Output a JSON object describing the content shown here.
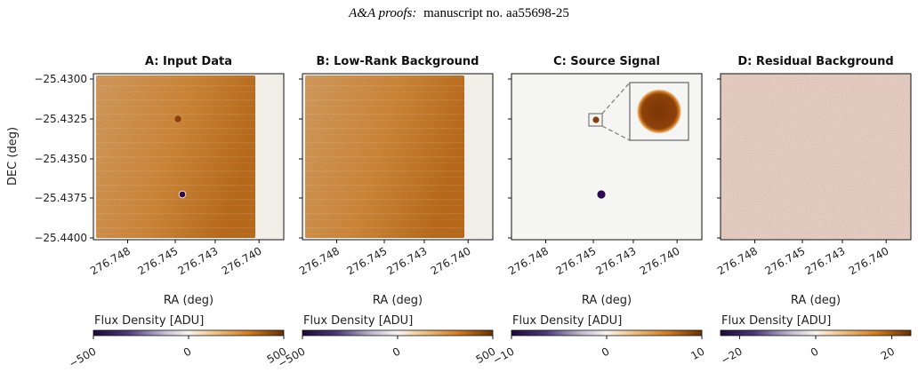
{
  "header": {
    "italic": "A&A proofs:",
    "rest": "manuscript no. aa55698-25"
  },
  "chart_data": [
    {
      "type": "heatmap",
      "title": "A: Input Data",
      "xlabel": "RA (deg)",
      "ylabel": "DEC (deg)",
      "xticks": [
        "276.748",
        "276.745",
        "276.743",
        "276.740"
      ],
      "yticks": [
        "−25.4300",
        "−25.4325",
        "−25.4350",
        "−25.4375",
        "−25.4400"
      ],
      "ylim": [
        -25.4402,
        -25.4298
      ],
      "colorbar": {
        "label": "Flux Density [ADU]",
        "min": -500,
        "max": 500,
        "ticks": [
          "−500",
          "0",
          "500"
        ]
      }
    },
    {
      "type": "heatmap",
      "title": "B: Low-Rank Background",
      "xlabel": "RA (deg)",
      "xticks": [
        "276.748",
        "276.745",
        "276.743",
        "276.740"
      ],
      "colorbar": {
        "label": "Flux Density [ADU]",
        "min": -500,
        "max": 500,
        "ticks": [
          "−500",
          "0",
          "500"
        ]
      }
    },
    {
      "type": "heatmap",
      "title": "C: Source Signal",
      "xlabel": "RA (deg)",
      "xticks": [
        "276.748",
        "276.745",
        "276.743",
        "276.740"
      ],
      "colorbar": {
        "label": "Flux Density [ADU]",
        "min": -10,
        "max": 10,
        "ticks": [
          "−10",
          "0",
          "10"
        ]
      }
    },
    {
      "type": "heatmap",
      "title": "D: Residual Background",
      "xlabel": "RA (deg)",
      "xticks": [
        "276.748",
        "276.745",
        "276.743",
        "276.740"
      ],
      "colorbar": {
        "label": "Flux Density [ADU]",
        "min": -25,
        "max": 25,
        "ticks": [
          "−20",
          "0",
          "20"
        ]
      }
    }
  ],
  "colors": {
    "colormap_low": "#2a0a4a",
    "colormap_mid": "#f5f4f2",
    "colormap_high": "#a0500a",
    "orange_field": "#d98a3c",
    "source_dark": "#2e0a50",
    "source_bright": "#8a3a08"
  }
}
